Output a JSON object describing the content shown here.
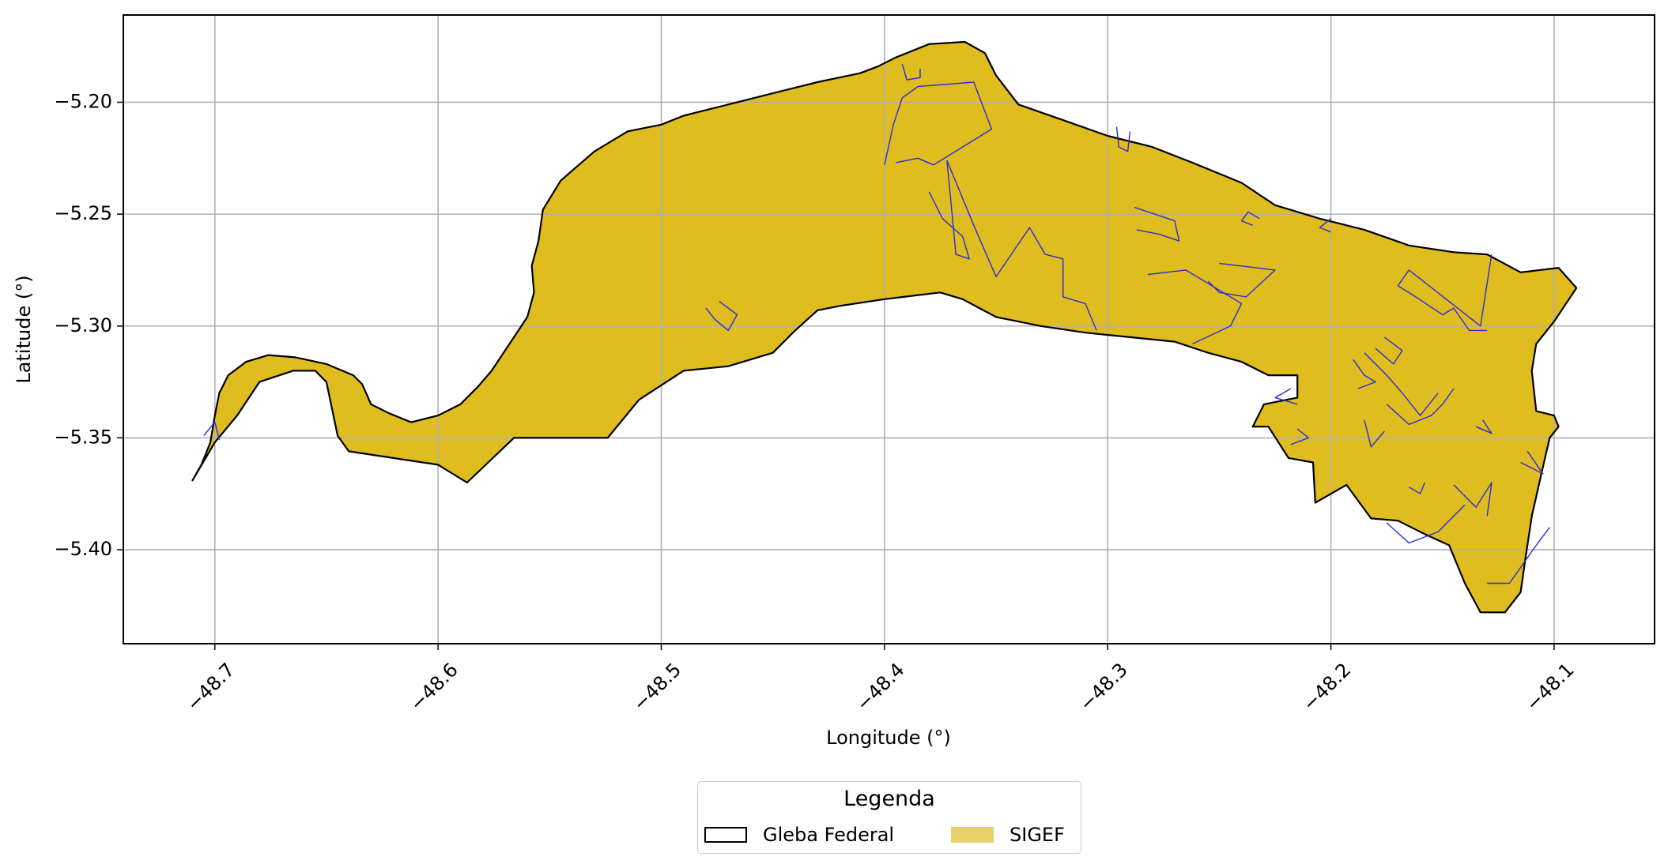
{
  "map": {
    "x_axis": {
      "label": "Longitude (°)",
      "range": [
        -48.741,
        -48.055
      ],
      "ticks": [
        -48.7,
        -48.6,
        -48.5,
        -48.4,
        -48.3,
        -48.2,
        -48.1
      ],
      "tick_labels": [
        "−48.7",
        "−48.6",
        "−48.5",
        "−48.4",
        "−48.3",
        "−48.2",
        "−48.1"
      ]
    },
    "y_axis": {
      "label": "Latitude (°)",
      "range": [
        -5.442,
        -5.161
      ],
      "ticks": [
        -5.2,
        -5.25,
        -5.3,
        -5.35,
        -5.4
      ],
      "tick_labels": [
        "−5.20",
        "−5.25",
        "−5.30",
        "−5.35",
        "−5.40"
      ]
    },
    "grid": true,
    "colors": {
      "fill": "#dfbd1f",
      "boundary": "#000000",
      "parcel_outline": "#2b2bd6",
      "grid": "#b0b0b0"
    },
    "gleba_boundary": [
      [
        -48.71,
        -5.369
      ],
      [
        -48.706,
        -5.362
      ],
      [
        -48.702,
        -5.352
      ],
      [
        -48.7,
        -5.34
      ],
      [
        -48.698,
        -5.33
      ],
      [
        -48.694,
        -5.322
      ],
      [
        -48.686,
        -5.316
      ],
      [
        -48.676,
        -5.313
      ],
      [
        -48.664,
        -5.314
      ],
      [
        -48.65,
        -5.317
      ],
      [
        -48.638,
        -5.322
      ],
      [
        -48.634,
        -5.326
      ],
      [
        -48.63,
        -5.335
      ],
      [
        -48.622,
        -5.339
      ],
      [
        -48.612,
        -5.343
      ],
      [
        -48.6,
        -5.34
      ],
      [
        -48.59,
        -5.335
      ],
      [
        -48.582,
        -5.327
      ],
      [
        -48.576,
        -5.32
      ],
      [
        -48.568,
        -5.308
      ],
      [
        -48.56,
        -5.296
      ],
      [
        -48.557,
        -5.285
      ],
      [
        -48.558,
        -5.273
      ],
      [
        -48.555,
        -5.262
      ],
      [
        -48.553,
        -5.248
      ],
      [
        -48.545,
        -5.235
      ],
      [
        -48.53,
        -5.222
      ],
      [
        -48.515,
        -5.213
      ],
      [
        -48.5,
        -5.21
      ],
      [
        -48.49,
        -5.206
      ],
      [
        -48.47,
        -5.201
      ],
      [
        -48.45,
        -5.196
      ],
      [
        -48.43,
        -5.191
      ],
      [
        -48.411,
        -5.187
      ],
      [
        -48.403,
        -5.184
      ],
      [
        -48.395,
        -5.18
      ],
      [
        -48.38,
        -5.174
      ],
      [
        -48.364,
        -5.173
      ],
      [
        -48.355,
        -5.178
      ],
      [
        -48.35,
        -5.188
      ],
      [
        -48.34,
        -5.201
      ],
      [
        -48.32,
        -5.208
      ],
      [
        -48.3,
        -5.215
      ],
      [
        -48.28,
        -5.22
      ],
      [
        -48.262,
        -5.227
      ],
      [
        -48.24,
        -5.236
      ],
      [
        -48.225,
        -5.246
      ],
      [
        -48.205,
        -5.252
      ],
      [
        -48.185,
        -5.257
      ],
      [
        -48.165,
        -5.264
      ],
      [
        -48.145,
        -5.267
      ],
      [
        -48.13,
        -5.268
      ],
      [
        -48.115,
        -5.276
      ],
      [
        -48.098,
        -5.274
      ],
      [
        -48.09,
        -5.283
      ],
      [
        -48.1,
        -5.298
      ],
      [
        -48.108,
        -5.308
      ],
      [
        -48.11,
        -5.32
      ],
      [
        -48.108,
        -5.338
      ],
      [
        -48.1,
        -5.34
      ],
      [
        -48.098,
        -5.345
      ],
      [
        -48.102,
        -5.35
      ],
      [
        -48.105,
        -5.363
      ],
      [
        -48.11,
        -5.385
      ],
      [
        -48.113,
        -5.405
      ],
      [
        -48.115,
        -5.419
      ],
      [
        -48.122,
        -5.428
      ],
      [
        -48.133,
        -5.428
      ],
      [
        -48.14,
        -5.415
      ],
      [
        -48.147,
        -5.398
      ],
      [
        -48.158,
        -5.393
      ],
      [
        -48.17,
        -5.387
      ],
      [
        -48.182,
        -5.386
      ],
      [
        -48.193,
        -5.371
      ],
      [
        -48.207,
        -5.379
      ],
      [
        -48.208,
        -5.361
      ],
      [
        -48.219,
        -5.359
      ],
      [
        -48.228,
        -5.345
      ],
      [
        -48.235,
        -5.345
      ],
      [
        -48.23,
        -5.335
      ],
      [
        -48.215,
        -5.332
      ],
      [
        -48.215,
        -5.322
      ],
      [
        -48.228,
        -5.322
      ],
      [
        -48.24,
        -5.316
      ],
      [
        -48.255,
        -5.312
      ],
      [
        -48.27,
        -5.307
      ],
      [
        -48.29,
        -5.305
      ],
      [
        -48.31,
        -5.303
      ],
      [
        -48.33,
        -5.3
      ],
      [
        -48.35,
        -5.296
      ],
      [
        -48.365,
        -5.288
      ],
      [
        -48.375,
        -5.285
      ],
      [
        -48.4,
        -5.288
      ],
      [
        -48.42,
        -5.291
      ],
      [
        -48.43,
        -5.293
      ],
      [
        -48.44,
        -5.302
      ],
      [
        -48.45,
        -5.312
      ],
      [
        -48.47,
        -5.318
      ],
      [
        -48.49,
        -5.32
      ],
      [
        -48.51,
        -5.333
      ],
      [
        -48.524,
        -5.35
      ],
      [
        -48.54,
        -5.35
      ],
      [
        -48.566,
        -5.35
      ],
      [
        -48.587,
        -5.37
      ],
      [
        -48.6,
        -5.362
      ],
      [
        -48.64,
        -5.356
      ],
      [
        -48.645,
        -5.349
      ],
      [
        -48.65,
        -5.325
      ],
      [
        -48.655,
        -5.32
      ],
      [
        -48.665,
        -5.32
      ],
      [
        -48.68,
        -5.325
      ],
      [
        -48.69,
        -5.34
      ],
      [
        -48.7,
        -5.352
      ],
      [
        -48.71,
        -5.369
      ]
    ],
    "parcels": [
      [
        [
          -48.4,
          -5.228
        ],
        [
          -48.396,
          -5.21
        ],
        [
          -48.392,
          -5.198
        ],
        [
          -48.385,
          -5.193
        ],
        [
          -48.36,
          -5.191
        ],
        [
          -48.352,
          -5.212
        ],
        [
          -48.365,
          -5.22
        ],
        [
          -48.378,
          -5.228
        ],
        [
          -48.385,
          -5.225
        ],
        [
          -48.395,
          -5.227
        ]
      ],
      [
        [
          -48.392,
          -5.183
        ],
        [
          -48.39,
          -5.19
        ],
        [
          -48.384,
          -5.189
        ],
        [
          -48.384,
          -5.185
        ]
      ],
      [
        [
          -48.38,
          -5.24
        ],
        [
          -48.374,
          -5.252
        ],
        [
          -48.365,
          -5.26
        ],
        [
          -48.362,
          -5.27
        ],
        [
          -48.368,
          -5.268
        ],
        [
          -48.372,
          -5.226
        ]
      ],
      [
        [
          -48.372,
          -5.226
        ],
        [
          -48.36,
          -5.255
        ],
        [
          -48.35,
          -5.278
        ],
        [
          -48.335,
          -5.256
        ],
        [
          -48.328,
          -5.268
        ],
        [
          -48.32,
          -5.27
        ],
        [
          -48.32,
          -5.287
        ],
        [
          -48.31,
          -5.29
        ],
        [
          -48.305,
          -5.302
        ]
      ],
      [
        [
          -48.296,
          -5.211
        ],
        [
          -48.295,
          -5.22
        ],
        [
          -48.291,
          -5.222
        ],
        [
          -48.29,
          -5.213
        ]
      ],
      [
        [
          -48.288,
          -5.247
        ],
        [
          -48.27,
          -5.253
        ],
        [
          -48.268,
          -5.262
        ],
        [
          -48.277,
          -5.259
        ],
        [
          -48.287,
          -5.257
        ]
      ],
      [
        [
          -48.232,
          -5.252
        ],
        [
          -48.237,
          -5.249
        ],
        [
          -48.24,
          -5.253
        ],
        [
          -48.235,
          -5.255
        ]
      ],
      [
        [
          -48.25,
          -5.272
        ],
        [
          -48.225,
          -5.275
        ],
        [
          -48.238,
          -5.287
        ],
        [
          -48.25,
          -5.285
        ],
        [
          -48.255,
          -5.28
        ]
      ],
      [
        [
          -48.282,
          -5.277
        ],
        [
          -48.265,
          -5.275
        ],
        [
          -48.24,
          -5.29
        ],
        [
          -48.245,
          -5.3
        ],
        [
          -48.262,
          -5.308
        ]
      ],
      [
        [
          -48.2,
          -5.252
        ],
        [
          -48.205,
          -5.256
        ],
        [
          -48.2,
          -5.258
        ]
      ],
      [
        [
          -48.165,
          -5.275
        ],
        [
          -48.17,
          -5.282
        ],
        [
          -48.162,
          -5.287
        ],
        [
          -48.15,
          -5.295
        ],
        [
          -48.145,
          -5.292
        ],
        [
          -48.138,
          -5.302
        ],
        [
          -48.13,
          -5.302
        ]
      ],
      [
        [
          -48.128,
          -5.268
        ],
        [
          -48.133,
          -5.3
        ],
        [
          -48.165,
          -5.275
        ]
      ],
      [
        [
          -48.185,
          -5.312
        ],
        [
          -48.175,
          -5.322
        ],
        [
          -48.168,
          -5.33
        ],
        [
          -48.16,
          -5.34
        ],
        [
          -48.152,
          -5.33
        ]
      ],
      [
        [
          -48.176,
          -5.305
        ],
        [
          -48.168,
          -5.311
        ],
        [
          -48.172,
          -5.317
        ],
        [
          -48.18,
          -5.31
        ]
      ],
      [
        [
          -48.19,
          -5.315
        ],
        [
          -48.185,
          -5.322
        ],
        [
          -48.18,
          -5.325
        ],
        [
          -48.188,
          -5.328
        ]
      ],
      [
        [
          -48.175,
          -5.335
        ],
        [
          -48.165,
          -5.344
        ],
        [
          -48.155,
          -5.34
        ],
        [
          -48.15,
          -5.335
        ],
        [
          -48.145,
          -5.328
        ]
      ],
      [
        [
          -48.48,
          -5.292
        ],
        [
          -48.476,
          -5.297
        ],
        [
          -48.47,
          -5.302
        ],
        [
          -48.466,
          -5.295
        ],
        [
          -48.474,
          -5.289
        ]
      ],
      [
        [
          -48.705,
          -5.349
        ],
        [
          -48.7,
          -5.343
        ],
        [
          -48.698,
          -5.351
        ]
      ],
      [
        [
          -48.218,
          -5.328
        ],
        [
          -48.225,
          -5.332
        ],
        [
          -48.215,
          -5.335
        ]
      ],
      [
        [
          -48.215,
          -5.346
        ],
        [
          -48.21,
          -5.35
        ],
        [
          -48.218,
          -5.353
        ]
      ],
      [
        [
          -48.175,
          -5.388
        ],
        [
          -48.165,
          -5.397
        ],
        [
          -48.152,
          -5.392
        ],
        [
          -48.14,
          -5.38
        ]
      ],
      [
        [
          -48.145,
          -5.371
        ],
        [
          -48.135,
          -5.381
        ],
        [
          -48.128,
          -5.37
        ],
        [
          -48.13,
          -5.385
        ]
      ],
      [
        [
          -48.115,
          -5.361
        ],
        [
          -48.105,
          -5.366
        ],
        [
          -48.112,
          -5.356
        ]
      ],
      [
        [
          -48.185,
          -5.342
        ],
        [
          -48.182,
          -5.354
        ],
        [
          -48.176,
          -5.347
        ]
      ],
      [
        [
          -48.165,
          -5.372
        ],
        [
          -48.16,
          -5.375
        ],
        [
          -48.158,
          -5.37
        ]
      ],
      [
        [
          -48.13,
          -5.415
        ],
        [
          -48.12,
          -5.415
        ],
        [
          -48.108,
          -5.398
        ],
        [
          -48.102,
          -5.39
        ]
      ],
      [
        [
          -48.135,
          -5.345
        ],
        [
          -48.128,
          -5.348
        ],
        [
          -48.132,
          -5.342
        ]
      ]
    ]
  },
  "legend": {
    "title": "Legenda",
    "items": [
      {
        "label": "Gleba Federal",
        "style": "outline",
        "color": "#000000"
      },
      {
        "label": "SIGEF",
        "style": "fill",
        "color": "#e8d06d"
      }
    ]
  }
}
